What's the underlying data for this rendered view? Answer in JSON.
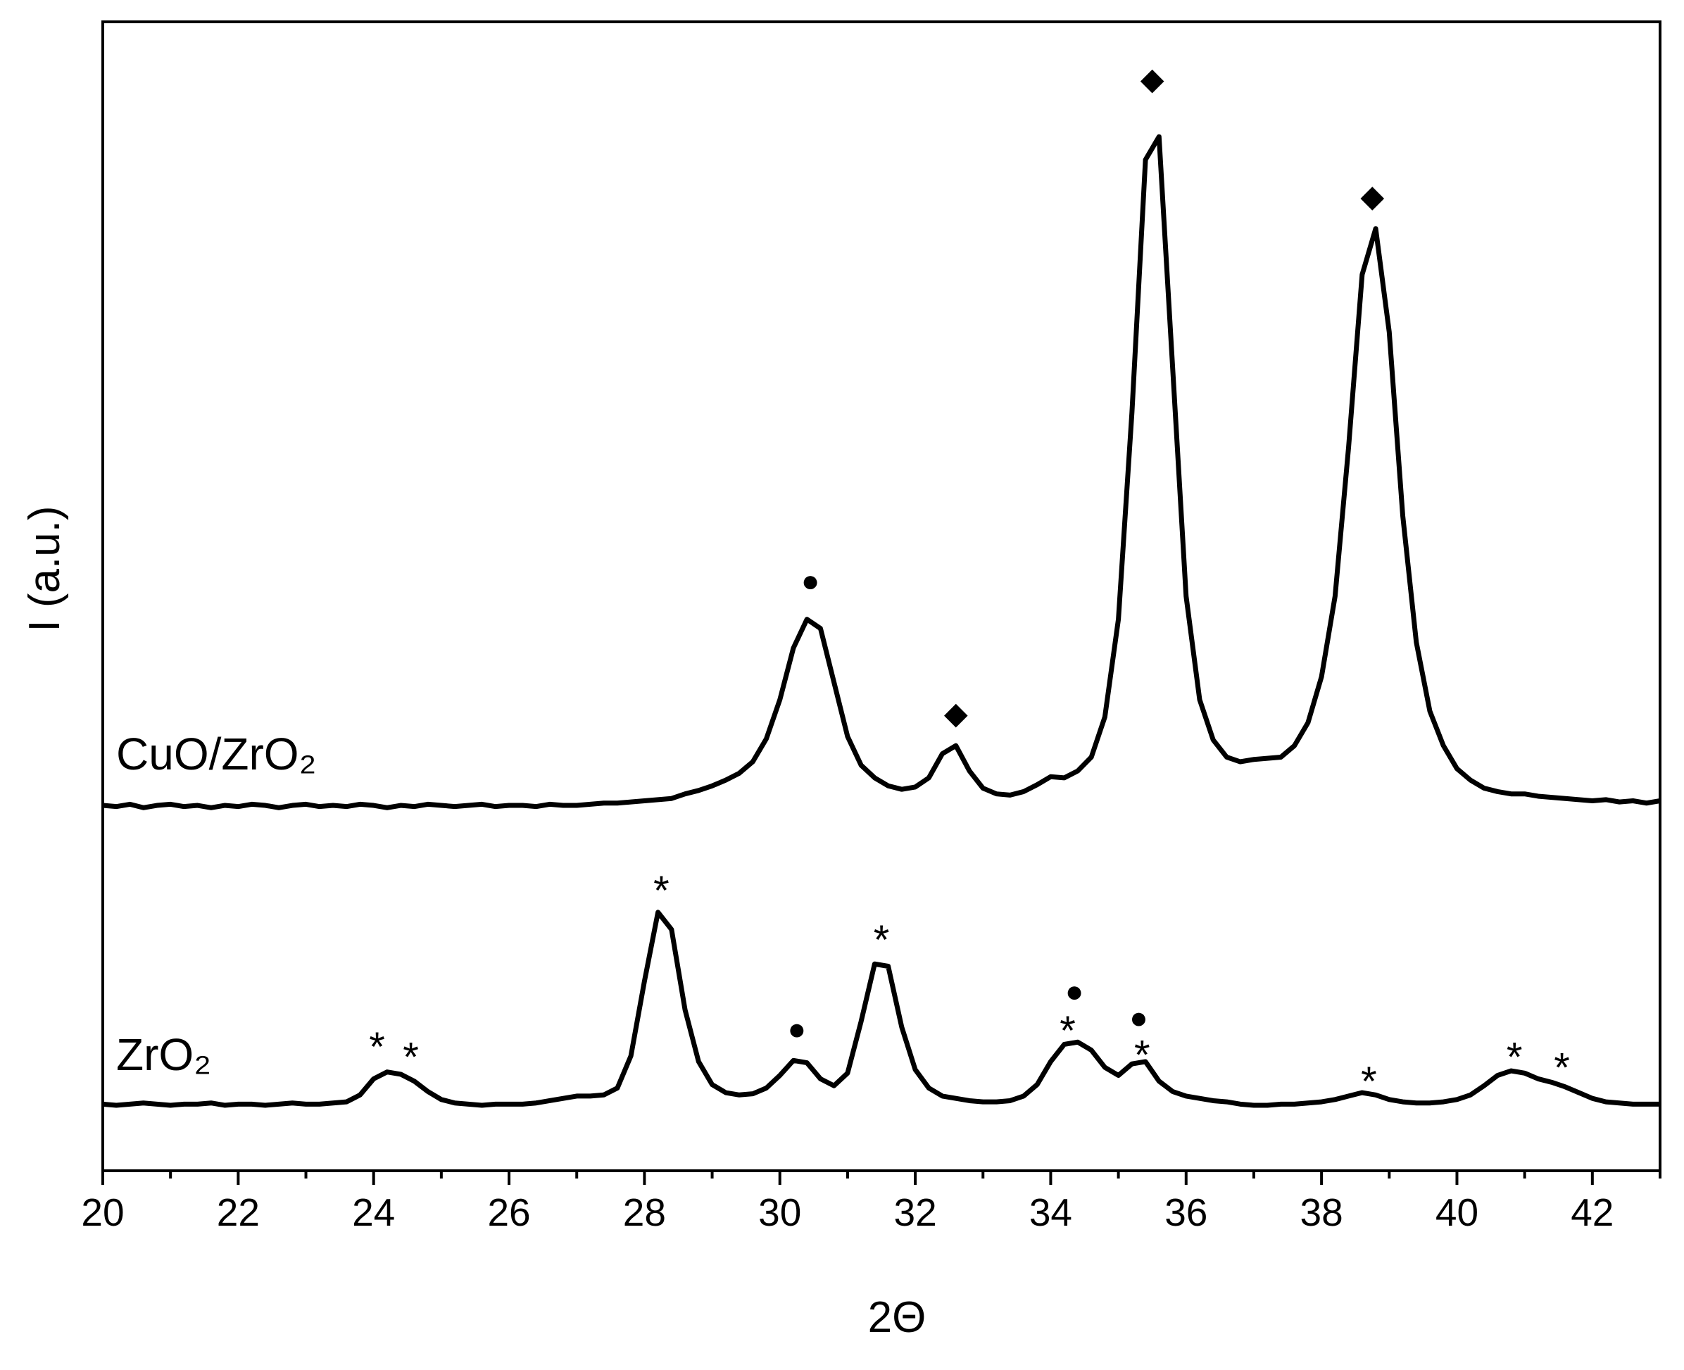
{
  "chart_data": {
    "type": "line",
    "x_label": "2Θ",
    "y_label": "I (a.u.)",
    "xlim": [
      20,
      43
    ],
    "ylim": [
      0,
      100
    ],
    "xticks": [
      20,
      22,
      24,
      26,
      28,
      30,
      32,
      34,
      36,
      38,
      40,
      42
    ],
    "xminorticks": [
      21,
      23,
      25,
      27,
      29,
      31,
      33,
      35,
      37,
      39,
      41,
      43
    ],
    "x": [
      20.0,
      20.2,
      20.4,
      20.6,
      20.8,
      21.0,
      21.2,
      21.4,
      21.6,
      21.8,
      22.0,
      22.2,
      22.4,
      22.6,
      22.8,
      23.0,
      23.2,
      23.4,
      23.6,
      23.8,
      24.0,
      24.2,
      24.4,
      24.6,
      24.8,
      25.0,
      25.2,
      25.4,
      25.6,
      25.8,
      26.0,
      26.2,
      26.4,
      26.6,
      26.8,
      27.0,
      27.2,
      27.4,
      27.6,
      27.8,
      28.0,
      28.2,
      28.4,
      28.6,
      28.8,
      29.0,
      29.2,
      29.4,
      29.6,
      29.8,
      30.0,
      30.2,
      30.4,
      30.6,
      30.8,
      31.0,
      31.2,
      31.4,
      31.6,
      31.8,
      32.0,
      32.2,
      32.4,
      32.6,
      32.8,
      33.0,
      33.2,
      33.4,
      33.6,
      33.8,
      34.0,
      34.2,
      34.4,
      34.6,
      34.8,
      35.0,
      35.2,
      35.4,
      35.6,
      35.8,
      36.0,
      36.2,
      36.4,
      36.6,
      36.8,
      37.0,
      37.2,
      37.4,
      37.6,
      37.8,
      38.0,
      38.2,
      38.4,
      38.6,
      38.8,
      39.0,
      39.2,
      39.4,
      39.6,
      39.8,
      40.0,
      40.2,
      40.4,
      40.6,
      40.8,
      41.0,
      41.2,
      41.4,
      41.6,
      41.8,
      42.0,
      42.2,
      42.4,
      42.6,
      42.8,
      43.0
    ],
    "series": [
      {
        "name": "CuO/ZrO₂",
        "color": "#000000",
        "values": [
          31.8,
          31.7,
          31.9,
          31.6,
          31.8,
          31.9,
          31.7,
          31.8,
          31.6,
          31.8,
          31.7,
          31.9,
          31.8,
          31.6,
          31.8,
          31.9,
          31.7,
          31.8,
          31.7,
          31.9,
          31.8,
          31.6,
          31.8,
          31.7,
          31.9,
          31.8,
          31.7,
          31.8,
          31.9,
          31.7,
          31.8,
          31.8,
          31.7,
          31.9,
          31.8,
          31.8,
          31.9,
          32.0,
          32.0,
          32.1,
          32.2,
          32.3,
          32.4,
          32.8,
          33.1,
          33.5,
          34.0,
          34.6,
          35.6,
          37.6,
          41.0,
          45.5,
          48.0,
          47.2,
          42.5,
          37.8,
          35.3,
          34.2,
          33.5,
          33.2,
          33.4,
          34.2,
          36.3,
          37.0,
          34.8,
          33.3,
          32.8,
          32.7,
          33.0,
          33.6,
          34.3,
          34.2,
          34.8,
          36.0,
          39.5,
          48.0,
          66.0,
          88.0,
          90.0,
          70.0,
          50.0,
          41.0,
          37.5,
          36.0,
          35.6,
          35.8,
          35.9,
          36.0,
          37.0,
          39.0,
          43.0,
          50.0,
          63.0,
          78.0,
          82.0,
          73.0,
          57.0,
          46.0,
          40.0,
          37.0,
          35.0,
          34.0,
          33.3,
          33.0,
          32.8,
          32.8,
          32.6,
          32.5,
          32.4,
          32.3,
          32.2,
          32.3,
          32.1,
          32.2,
          32.0,
          32.2
        ]
      },
      {
        "name": "ZrO₂",
        "color": "#000000",
        "values": [
          5.8,
          5.7,
          5.8,
          5.9,
          5.8,
          5.7,
          5.8,
          5.8,
          5.9,
          5.7,
          5.8,
          5.8,
          5.7,
          5.8,
          5.9,
          5.8,
          5.8,
          5.9,
          6.0,
          6.6,
          8.0,
          8.6,
          8.4,
          7.8,
          6.9,
          6.2,
          5.9,
          5.8,
          5.7,
          5.8,
          5.8,
          5.8,
          5.9,
          6.1,
          6.3,
          6.5,
          6.5,
          6.6,
          7.2,
          10.0,
          16.5,
          22.5,
          21.0,
          14.0,
          9.5,
          7.5,
          6.8,
          6.6,
          6.7,
          7.2,
          8.3,
          9.6,
          9.4,
          8.0,
          7.4,
          8.5,
          13.0,
          18.0,
          17.8,
          12.5,
          8.8,
          7.2,
          6.5,
          6.3,
          6.1,
          6.0,
          6.0,
          6.1,
          6.5,
          7.5,
          9.5,
          11.0,
          11.2,
          10.5,
          9.0,
          8.3,
          9.3,
          9.5,
          7.8,
          6.9,
          6.5,
          6.3,
          6.1,
          6.0,
          5.8,
          5.7,
          5.7,
          5.8,
          5.8,
          5.9,
          6.0,
          6.2,
          6.5,
          6.8,
          6.6,
          6.2,
          6.0,
          5.9,
          5.9,
          6.0,
          6.2,
          6.6,
          7.4,
          8.3,
          8.7,
          8.5,
          8.0,
          7.7,
          7.3,
          6.8,
          6.3,
          6.0,
          5.9,
          5.8,
          5.8,
          5.8
        ]
      }
    ],
    "annotations": [
      {
        "text": "●",
        "x": 30.45,
        "y": 51.4
      },
      {
        "text": "◆",
        "x": 32.6,
        "y": 39.9
      },
      {
        "text": "◆",
        "x": 35.5,
        "y": 95.1
      },
      {
        "text": "◆",
        "x": 38.75,
        "y": 84.9
      },
      {
        "text": "*",
        "x": 24.05,
        "y": 11.4
      },
      {
        "text": "*",
        "x": 24.55,
        "y": 10.5
      },
      {
        "text": "*",
        "x": 28.25,
        "y": 25
      },
      {
        "text": "●",
        "x": 30.25,
        "y": 12.4
      },
      {
        "text": "*",
        "x": 31.5,
        "y": 20.7
      },
      {
        "text": "●",
        "x": 34.35,
        "y": 15.7
      },
      {
        "text": "*",
        "x": 34.25,
        "y": 12.8
      },
      {
        "text": "●",
        "x": 35.3,
        "y": 13.4
      },
      {
        "text": "*",
        "x": 35.35,
        "y": 10.7
      },
      {
        "text": "*",
        "x": 38.7,
        "y": 8.4
      },
      {
        "text": "*",
        "x": 40.85,
        "y": 10.5
      },
      {
        "text": "*",
        "x": 41.55,
        "y": 9.6
      }
    ]
  }
}
